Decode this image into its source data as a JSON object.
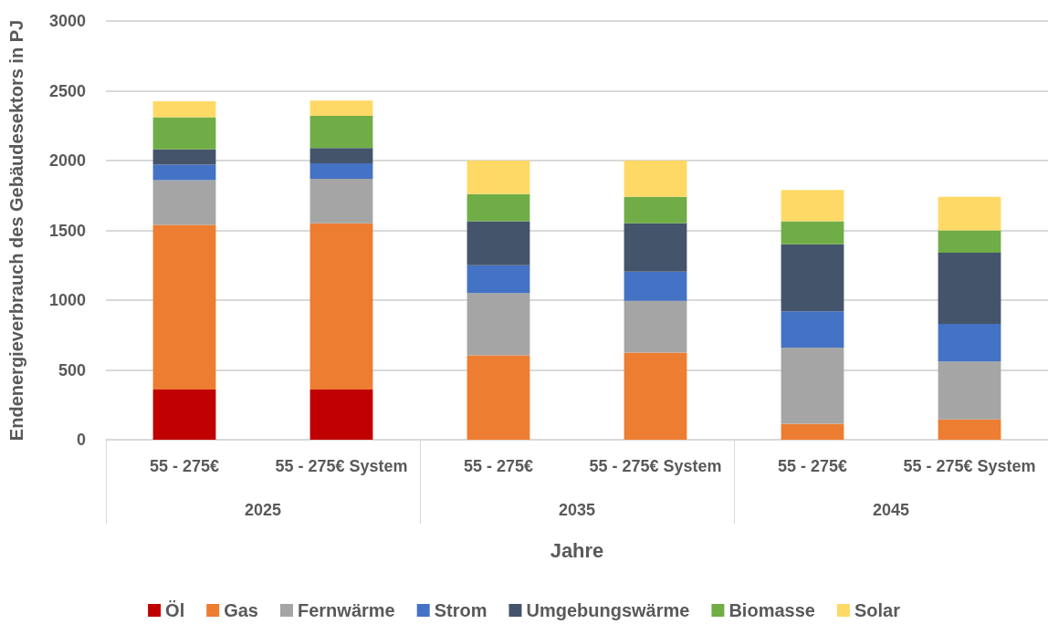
{
  "chart_data": {
    "type": "bar",
    "stacked": true,
    "xlabel": "Jahre",
    "ylabel": "Endenergieverbrauch des Gebäudesektors in PJ",
    "categories": [
      "55 - 275€",
      "55 - 275€ System",
      "55 - 275€",
      "55 - 275€ System",
      "55 - 275€",
      "55 - 275€ System"
    ],
    "annotations": [
      "2025",
      "2035",
      "2045"
    ],
    "series": [
      {
        "name": "Öl",
        "color": "#c00000",
        "values": [
          360,
          360,
          0,
          0,
          0,
          0
        ]
      },
      {
        "name": "Gas",
        "color": "#ed7d31",
        "values": [
          1180,
          1190,
          605,
          625,
          115,
          145
        ]
      },
      {
        "name": "Fernwärme",
        "color": "#a5a5a5",
        "values": [
          320,
          320,
          445,
          370,
          545,
          415
        ]
      },
      {
        "name": "Strom",
        "color": "#4472c4",
        "values": [
          110,
          110,
          200,
          210,
          260,
          270
        ]
      },
      {
        "name": "Umgebungswärme",
        "color": "#44546a",
        "values": [
          110,
          110,
          315,
          345,
          480,
          510
        ]
      },
      {
        "name": "Biomasse",
        "color": "#70ad47",
        "values": [
          230,
          230,
          195,
          190,
          165,
          160
        ]
      },
      {
        "name": "Solar",
        "color": "#ffd966",
        "values": [
          115,
          110,
          240,
          260,
          225,
          240
        ]
      }
    ],
    "ylim": [
      0,
      3000
    ],
    "yticks": [
      0,
      500,
      1000,
      1500,
      2000,
      2500,
      3000
    ],
    "grid": "y",
    "legend": "bottom"
  }
}
